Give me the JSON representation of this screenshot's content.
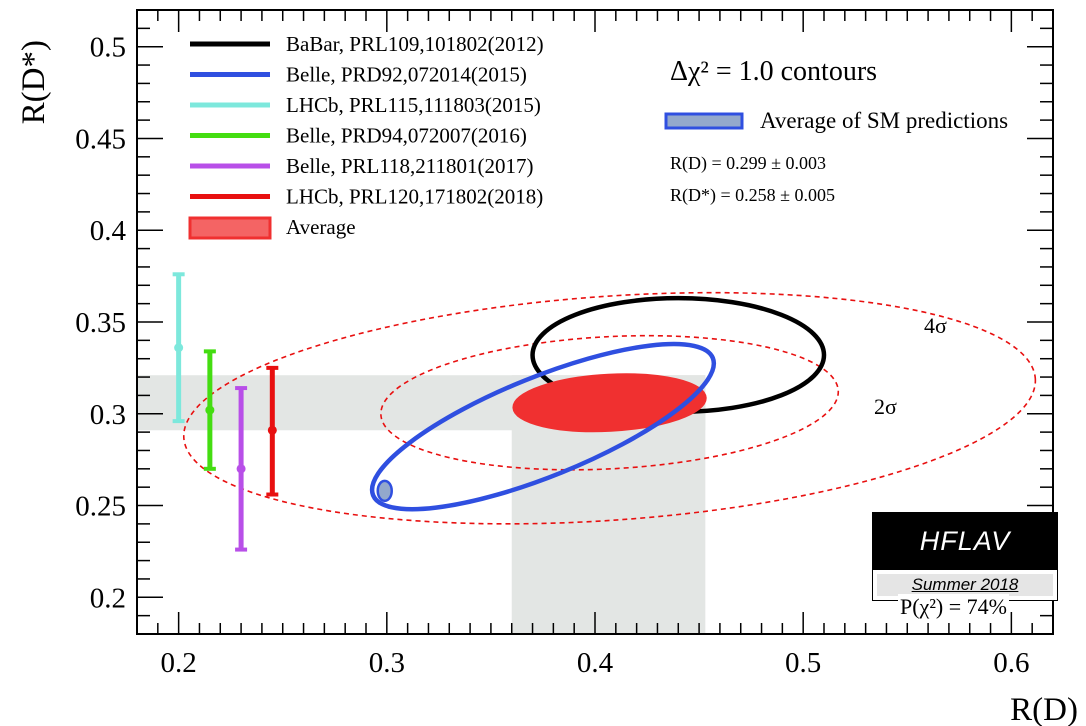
{
  "chart_data": {
    "type": "scatter",
    "xlabel": "R(D)",
    "ylabel": "R(D*)",
    "xlim": [
      0.18,
      0.62
    ],
    "ylim": [
      0.18,
      0.52
    ],
    "x_ticks": [
      "0.2",
      "0.3",
      "0.4",
      "0.5",
      "0.6"
    ],
    "y_ticks": [
      "0.2",
      "0.25",
      "0.3",
      "0.35",
      "0.4",
      "0.45",
      "0.5"
    ],
    "annotation_title": "Δχ² = 1.0 contours",
    "sm_legend": "Average of SM predictions",
    "sm_rd": "R(D) = 0.299 ± 0.003",
    "sm_rdstar": "R(D*) = 0.258 ± 0.005",
    "sigma_labels": [
      "4σ",
      "2σ"
    ],
    "p_chi2": "P(χ²) = 74%",
    "hflav_label": "HFLAV",
    "hflav_season": "Summer 2018",
    "colors": {
      "babar": "#000000",
      "belle2015": "#2f4fe0",
      "lhcb2015": "#7de8dc",
      "belle2016": "#44dd11",
      "belle2017": "#b84fe8",
      "lhcb2018": "#e81010",
      "average_fill": "#f03030",
      "band": "#e3e6e4",
      "sm_fill": "#93a8cc",
      "sm_edge": "#2f4fe0"
    },
    "series": [
      {
        "name": "BaBar, PRL109,101802(2012)",
        "kind": "ellipse",
        "color": "#000000",
        "cx": 0.44,
        "cy": 0.332,
        "rx": 0.07,
        "ry": 0.031,
        "angle": 0
      },
      {
        "name": "Belle, PRD92,072014(2015)",
        "kind": "ellipse",
        "color": "#2f4fe0",
        "cx": 0.375,
        "cy": 0.293,
        "rx": 0.088,
        "ry": 0.027,
        "angle": -22
      },
      {
        "name": "LHCb, PRL115,111803(2015)",
        "kind": "errorbar",
        "color": "#7de8dc",
        "x": 0.2,
        "y": 0.336,
        "ylow": 0.296,
        "yhigh": 0.376
      },
      {
        "name": "Belle, PRD94,072007(2016)",
        "kind": "errorbar",
        "color": "#44dd11",
        "x": 0.215,
        "y": 0.302,
        "ylow": 0.27,
        "yhigh": 0.334
      },
      {
        "name": "Belle, PRL118,211801(2017)",
        "kind": "errorbar",
        "color": "#b84fe8",
        "x": 0.23,
        "y": 0.27,
        "ylow": 0.226,
        "yhigh": 0.314
      },
      {
        "name": "LHCb, PRL120,171802(2018)",
        "kind": "errorbar",
        "color": "#e81010",
        "x": 0.245,
        "y": 0.291,
        "ylow": 0.256,
        "yhigh": 0.325
      },
      {
        "name": "Average",
        "kind": "ellipse",
        "color": "#f03030",
        "cx": 0.407,
        "cy": 0.306,
        "rx": 0.046,
        "ry": 0.015,
        "angle": -3
      }
    ],
    "average_band": {
      "rd_low": 0.36,
      "rd_high": 0.453,
      "rdstar_low": 0.291,
      "rdstar_high": 0.321
    },
    "contours": [
      {
        "label": "4σ",
        "cx": 0.407,
        "cy": 0.303,
        "rx": 0.205,
        "ry": 0.061,
        "angle": -4
      },
      {
        "label": "2σ",
        "cx": 0.407,
        "cy": 0.306,
        "rx": 0.11,
        "ry": 0.036,
        "angle": -3
      }
    ],
    "sm_point": {
      "x": 0.299,
      "y": 0.258,
      "dx": 0.003,
      "dy": 0.005
    }
  }
}
